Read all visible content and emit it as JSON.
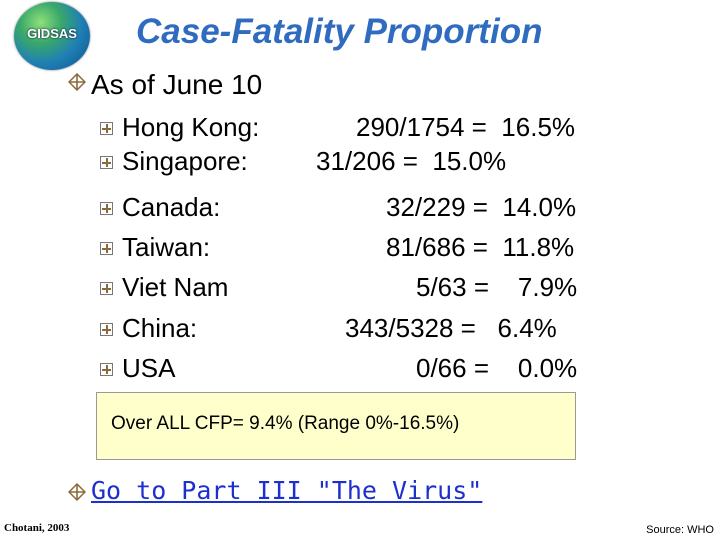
{
  "logo": {
    "text": "GIDSAS"
  },
  "title": "Case-Fatality Proportion",
  "heading": "As of June 10",
  "rows": [
    {
      "country": "Hong Kong:",
      "value": "290/1754 =  16.5%"
    },
    {
      "country": "Singapore:",
      "value": "31/206 =  15.0%"
    },
    {
      "country": "Canada:",
      "value": "32/229 =  14.0%"
    },
    {
      "country": "Taiwan:",
      "value": "81/686 =  11.8%"
    },
    {
      "country": "Viet Nam",
      "value": "5/63 =    7.9%"
    },
    {
      "country": "China:",
      "value": "343/5328 =   6.4%"
    },
    {
      "country": "USA",
      "value": "0/66 =    0.0%"
    }
  ],
  "summary": "Over ALL CFP= 9.4% (Range 0%-16.5%)",
  "link_text": "Go to Part III \"The Virus\"",
  "footer_left": "Chotani, 2003",
  "footer_right": "Source: WHO",
  "colors": {
    "title": "#2f6cc0",
    "link": "#1c2fd1",
    "summary_bg": "#ffffcc",
    "bullet": "#8a6a3a"
  }
}
